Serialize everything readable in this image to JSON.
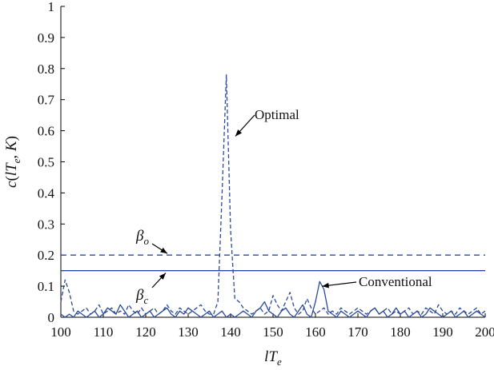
{
  "chart_data": {
    "type": "line",
    "xlabel": "lT_e",
    "ylabel": "c(lT_e, K)",
    "xlim": [
      100,
      200
    ],
    "ylim": [
      0,
      1
    ],
    "xticks": [
      100,
      110,
      120,
      130,
      140,
      150,
      160,
      170,
      180,
      190,
      200
    ],
    "yticks": [
      0,
      0.1,
      0.2,
      0.3,
      0.4,
      0.5,
      0.6,
      0.7,
      0.8,
      0.9,
      1
    ],
    "ytick_labels": [
      "0",
      "0.1",
      "0.2",
      "0.3",
      "0.4",
      "0.5",
      "0.6",
      "0.7",
      "0.8",
      "0.9",
      "1"
    ],
    "grid": false,
    "series": [
      {
        "name": "Optimal",
        "style": "dashed",
        "color": "#2a4a9a",
        "x": [
          100,
          101,
          102,
          103,
          104,
          105,
          106,
          107,
          108,
          109,
          110,
          111,
          112,
          113,
          114,
          115,
          116,
          117,
          118,
          119,
          120,
          121,
          122,
          123,
          124,
          125,
          126,
          127,
          128,
          129,
          130,
          131,
          132,
          133,
          134,
          135,
          136,
          137,
          138,
          139,
          140,
          141,
          142,
          143,
          144,
          145,
          146,
          147,
          148,
          149,
          150,
          151,
          152,
          153,
          154,
          155,
          156,
          157,
          158,
          159,
          160,
          161,
          162,
          163,
          164,
          165,
          166,
          167,
          168,
          169,
          170,
          171,
          172,
          173,
          174,
          175,
          176,
          177,
          178,
          179,
          180,
          181,
          182,
          183,
          184,
          185,
          186,
          187,
          188,
          189,
          190,
          191,
          192,
          193,
          194,
          195,
          196,
          197,
          198,
          199,
          200
        ],
        "values": [
          0.05,
          0.12,
          0.08,
          0.02,
          0.01,
          0.02,
          0.03,
          0.01,
          0.02,
          0.04,
          0.01,
          0.02,
          0.03,
          0.01,
          0.02,
          0.01,
          0.04,
          0.02,
          0.01,
          0.03,
          0.01,
          0.02,
          0.03,
          0.01,
          0.02,
          0.04,
          0.02,
          0.01,
          0.03,
          0.02,
          0.01,
          0.02,
          0.03,
          0.04,
          0.02,
          0.01,
          0.01,
          0.05,
          0.4,
          0.78,
          0.28,
          0.06,
          0.05,
          0.03,
          0.02,
          0.01,
          0.02,
          0.03,
          0.01,
          0.02,
          0.07,
          0.04,
          0.02,
          0.05,
          0.08,
          0.03,
          0.01,
          0.02,
          0.06,
          0.03,
          0.01,
          0.02,
          0.03,
          0.01,
          0.02,
          0.01,
          0.03,
          0.02,
          0.01,
          0.02,
          0.03,
          0.02,
          0.01,
          0.02,
          0.03,
          0.01,
          0.02,
          0.03,
          0.01,
          0.02,
          0.01,
          0.02,
          0.03,
          0.01,
          0.02,
          0.01,
          0.03,
          0.02,
          0.01,
          0.04,
          0.02,
          0.01,
          0.02,
          0.01,
          0.03,
          0.02,
          0.01,
          0.02,
          0.03,
          0.01,
          0.02
        ]
      },
      {
        "name": "Conventional",
        "style": "solid",
        "color": "#2a4a9a",
        "x": [
          100,
          101,
          102,
          103,
          104,
          105,
          106,
          107,
          108,
          109,
          110,
          111,
          112,
          113,
          114,
          115,
          116,
          117,
          118,
          119,
          120,
          121,
          122,
          123,
          124,
          125,
          126,
          127,
          128,
          129,
          130,
          131,
          132,
          133,
          134,
          135,
          136,
          137,
          138,
          139,
          140,
          141,
          142,
          143,
          144,
          145,
          146,
          147,
          148,
          149,
          150,
          151,
          152,
          153,
          154,
          155,
          156,
          157,
          158,
          159,
          160,
          161,
          162,
          163,
          164,
          165,
          166,
          167,
          168,
          169,
          170,
          171,
          172,
          173,
          174,
          175,
          176,
          177,
          178,
          179,
          180,
          181,
          182,
          183,
          184,
          185,
          186,
          187,
          188,
          189,
          190,
          191,
          192,
          193,
          194,
          195,
          196,
          197,
          198,
          199,
          200
        ],
        "values": [
          0.01,
          0.0,
          0.01,
          0.0,
          0.02,
          0.01,
          0.0,
          0.01,
          0.02,
          0.0,
          0.01,
          0.03,
          0.02,
          0.01,
          0.04,
          0.02,
          0.0,
          0.01,
          0.02,
          0.0,
          0.01,
          0.02,
          0.0,
          0.01,
          0.02,
          0.03,
          0.01,
          0.0,
          0.02,
          0.01,
          0.03,
          0.02,
          0.01,
          0.0,
          0.01,
          0.02,
          0.0,
          0.01,
          0.02,
          0.0,
          0.01,
          0.0,
          0.01,
          0.02,
          0.01,
          0.0,
          0.02,
          0.03,
          0.05,
          0.02,
          0.01,
          0.0,
          0.02,
          0.03,
          0.01,
          0.0,
          0.02,
          0.04,
          0.01,
          0.0,
          0.05,
          0.115,
          0.09,
          0.02,
          0.01,
          0.0,
          0.02,
          0.01,
          0.0,
          0.01,
          0.02,
          0.01,
          0.0,
          0.02,
          0.03,
          0.01,
          0.02,
          0.0,
          0.01,
          0.03,
          0.01,
          0.02,
          0.0,
          0.01,
          0.02,
          0.0,
          0.01,
          0.03,
          0.02,
          0.01,
          0.0,
          0.01,
          0.02,
          0.0,
          0.01,
          0.02,
          0.0,
          0.01,
          0.02,
          0.01,
          0.0
        ]
      }
    ],
    "thresholds": [
      {
        "label": "β_o",
        "value": 0.2,
        "style": "dashed"
      },
      {
        "label": "β_c",
        "value": 0.15,
        "style": "solid"
      }
    ],
    "annotations": [
      {
        "text": "Optimal",
        "target": [
          140,
          0.59
        ]
      },
      {
        "text": "Conventional",
        "target": [
          161,
          0.11
        ]
      }
    ]
  }
}
